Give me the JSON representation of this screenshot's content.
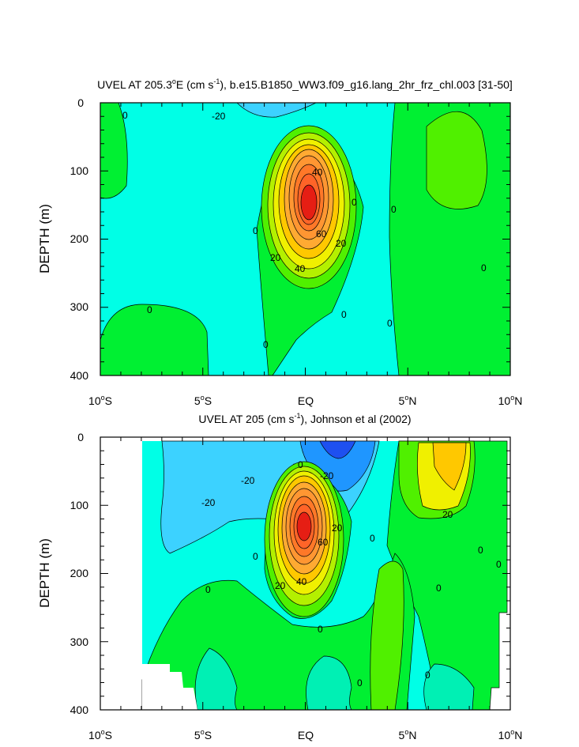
{
  "chart_data": [
    {
      "type": "contour",
      "title": "UVEL AT 205.3°E (cm s-1), b.e15.B1850_WW3.f09_g16.lang_2hr_frz_chl.003 [31-50]",
      "title_parts": {
        "a": "UVEL AT 205.3",
        "b": "o",
        "c": "E (cm s",
        "d": "-1",
        "e": "), b.e15.B1850_WW3.f09_g16.lang_2hr_frz_chl.003 [31-50]"
      },
      "ylabel": "DEPTH (m)",
      "ylim": [
        400,
        0
      ],
      "xlim": [
        -10,
        10
      ],
      "yticks": [
        "0",
        "100",
        "200",
        "300",
        "400"
      ],
      "xticks": [
        {
          "v": "10",
          "s": "o",
          "t": "S"
        },
        {
          "v": "5",
          "s": "o",
          "t": "S"
        },
        {
          "v": "EQ",
          "s": "",
          "t": ""
        },
        {
          "v": "5",
          "s": "o",
          "t": "N"
        },
        {
          "v": "10",
          "s": "o",
          "t": "N"
        }
      ],
      "contour_labels": [
        "0",
        "-20",
        "40",
        "0",
        "0",
        "60",
        "20",
        "0",
        "20",
        "40",
        "0",
        "0",
        "0",
        "0",
        "0"
      ],
      "core": {
        "lat": 0,
        "depth": 150,
        "max": 100
      }
    },
    {
      "type": "contour",
      "title": "UVEL AT 205 (cm s-1), Johnson et al (2002)",
      "title_parts": {
        "a": "UVEL AT 205 (cm s",
        "b": "-1",
        "c": "), Johnson et al (2002)"
      },
      "ylabel": "DEPTH (m)",
      "ylim": [
        400,
        0
      ],
      "xlim": [
        -10,
        10
      ],
      "yticks": [
        "0",
        "100",
        "200",
        "300",
        "400"
      ],
      "xticks": [
        {
          "v": "10",
          "s": "o",
          "t": "S"
        },
        {
          "v": "5",
          "s": "o",
          "t": "S"
        },
        {
          "v": "EQ",
          "s": "",
          "t": ""
        },
        {
          "v": "5",
          "s": "o",
          "t": "N"
        },
        {
          "v": "10",
          "s": "o",
          "t": "N"
        }
      ],
      "contour_labels": [
        "-20",
        "-20",
        "0",
        "-20",
        "20",
        "60",
        "20",
        "40",
        "20",
        "0",
        "0",
        "0",
        "0",
        "0",
        "0",
        "0",
        "0",
        "0"
      ],
      "core": {
        "lat": 0,
        "depth": 130,
        "max": 100
      }
    }
  ],
  "colors": {
    "deep_blue": "#1e50f0",
    "blue": "#1f96ff",
    "lightblue": "#3cd2ff",
    "cyan": "#00ffe6",
    "aqua": "#00f0b4",
    "green": "#00f032",
    "lime": "#50f000",
    "yellowgreen": "#b4f000",
    "yellow": "#f0f000",
    "gold": "#ffc800",
    "orange": "#ff9632",
    "redorange": "#ff6428",
    "red": "#e61e14"
  }
}
